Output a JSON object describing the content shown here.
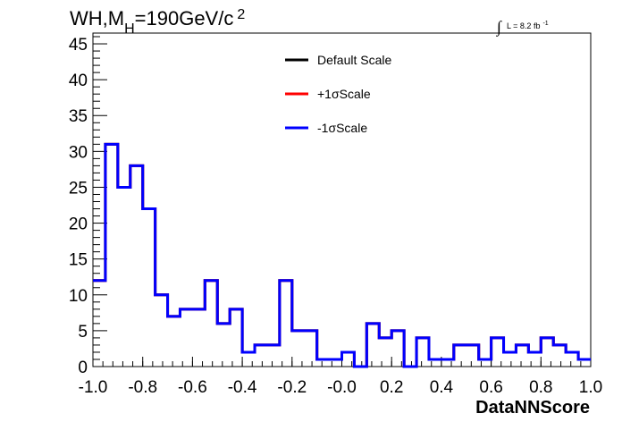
{
  "chart_data": {
    "type": "line",
    "title": {
      "main": "WH,M",
      "sub": "H",
      "rest": "=190GeV/c",
      "sup": "2"
    },
    "luminosity": {
      "integral": "∫",
      "text": "L = 8.2 fb",
      "sup": "-1"
    },
    "xlabel": "DataNNScore",
    "ylabel": "",
    "xlim": [
      -1.0,
      1.0
    ],
    "ylim": [
      0,
      46.5
    ],
    "x_ticks": [
      "-1.0",
      "-0.8",
      "-0.6",
      "-0.4",
      "-0.2",
      "-0.0",
      "0.2",
      "0.4",
      "0.6",
      "0.8",
      "1.0"
    ],
    "y_ticks": [
      "0",
      "5",
      "10",
      "15",
      "20",
      "25",
      "30",
      "35",
      "40",
      "45"
    ],
    "grid": false,
    "legend_position": "top-center",
    "bin_edges": [
      -1.0,
      -0.95,
      -0.9,
      -0.85,
      -0.8,
      -0.75,
      -0.7,
      -0.65,
      -0.6,
      -0.55,
      -0.5,
      -0.45,
      -0.4,
      -0.35,
      -0.3,
      -0.25,
      -0.2,
      -0.15,
      -0.1,
      -0.05,
      0.0,
      0.05,
      0.1,
      0.15,
      0.2,
      0.25,
      0.3,
      0.35,
      0.4,
      0.45,
      0.5,
      0.55,
      0.6,
      0.65,
      0.7,
      0.75,
      0.8,
      0.85,
      0.9,
      0.95,
      1.0
    ],
    "series": [
      {
        "name": "Default Scale",
        "color": "#000000",
        "values": [
          12,
          31,
          25,
          28,
          22,
          10,
          7,
          8,
          8,
          12,
          6,
          8,
          2,
          3,
          3,
          12,
          5,
          5,
          1,
          1,
          2,
          0,
          6,
          4,
          5,
          0,
          4,
          1,
          1,
          3,
          3,
          1,
          4,
          2,
          3,
          2,
          4,
          3,
          2,
          1
        ]
      },
      {
        "name": "+1σScale",
        "color": "#ff0000",
        "values": [
          12,
          31,
          25,
          28,
          22,
          10,
          7,
          8,
          8,
          12,
          6,
          8,
          2,
          3,
          3,
          12,
          5,
          5,
          1,
          1,
          2,
          0,
          6,
          4,
          5,
          0,
          4,
          1,
          1,
          3,
          3,
          1,
          4,
          2,
          3,
          2,
          4,
          3,
          2,
          1
        ]
      },
      {
        "name": "-1σScale",
        "color": "#0000ff",
        "values": [
          12,
          31,
          25,
          28,
          22,
          10,
          7,
          8,
          8,
          12,
          6,
          8,
          2,
          3,
          3,
          12,
          5,
          5,
          1,
          1,
          2,
          0,
          6,
          4,
          5,
          0,
          4,
          1,
          1,
          3,
          3,
          1,
          4,
          2,
          3,
          2,
          4,
          3,
          2,
          1
        ]
      }
    ]
  }
}
